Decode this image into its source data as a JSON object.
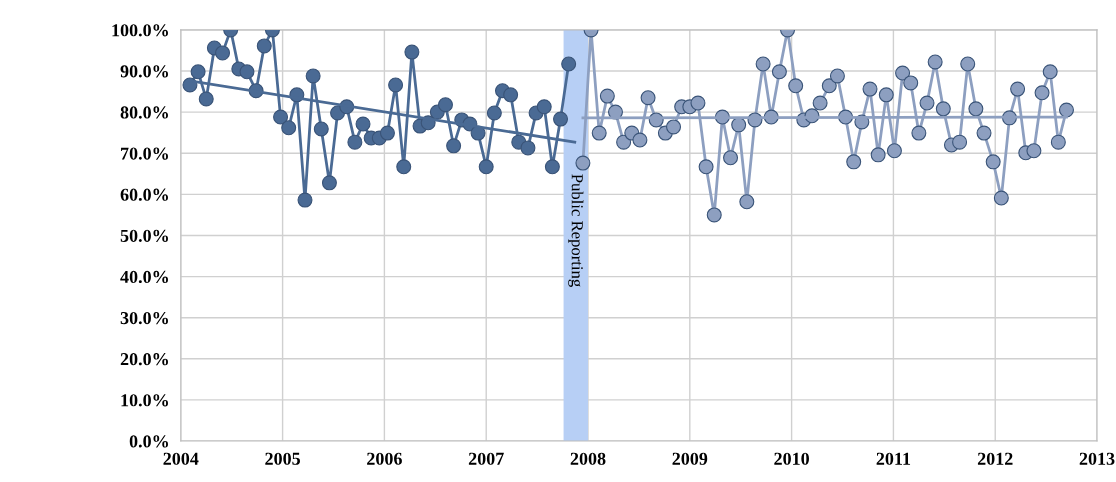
{
  "chart_data": {
    "type": "line",
    "series": [
      {
        "color": "#4a6a94",
        "marker": "circle",
        "x": [
          2004.09,
          2004.17,
          2004.25,
          2004.33,
          2004.41,
          2004.49,
          2004.57,
          2004.65,
          2004.74,
          2004.82,
          2004.9,
          2004.98,
          2005.06,
          2005.14,
          2005.22,
          2005.3,
          2005.38,
          2005.46,
          2005.54,
          2005.63,
          2005.71,
          2005.79,
          2005.87,
          2005.95,
          2006.03,
          2006.11,
          2006.19,
          2006.27,
          2006.35,
          2006.43,
          2006.52,
          2006.6,
          2006.68,
          2006.76,
          2006.84,
          2006.92,
          2007.0,
          2007.08,
          2007.16,
          2007.24,
          2007.32,
          2007.41,
          2007.49,
          2007.57,
          2007.65,
          2007.73,
          2007.81
        ],
        "values": [
          86.6,
          89.8,
          83.2,
          95.6,
          94.4,
          100,
          90.5,
          89.8,
          85.2,
          96.1,
          100,
          78.8,
          76.2,
          84.2,
          58.6,
          88.8,
          75.9,
          62.8,
          79.8,
          81.3,
          72.7,
          77.1,
          73.7,
          73.7,
          74.9,
          86.6,
          66.7,
          94.6,
          76.6,
          77.4,
          80.0,
          81.8,
          71.8,
          78.1,
          77.1,
          74.9,
          66.7,
          79.8,
          85.2,
          84.2,
          72.7,
          71.3,
          79.8,
          81.3,
          66.7,
          78.3,
          91.7
        ]
      },
      {
        "color": "#8d9fc0",
        "marker": "circle",
        "x": [
          2007.95,
          2008.03,
          2008.11,
          2008.19,
          2008.27,
          2008.35,
          2008.43,
          2008.51,
          2008.59,
          2008.67,
          2008.76,
          2008.84,
          2008.92,
          2009.0,
          2009.08,
          2009.16,
          2009.24,
          2009.32,
          2009.4,
          2009.48,
          2009.56,
          2009.64,
          2009.72,
          2009.8,
          2009.88,
          2009.96,
          2010.04,
          2010.12,
          2010.2,
          2010.28,
          2010.37,
          2010.45,
          2010.53,
          2010.61,
          2010.69,
          2010.77,
          2010.85,
          2010.93,
          2011.01,
          2011.09,
          2011.17,
          2011.25,
          2011.33,
          2011.41,
          2011.49,
          2011.57,
          2011.65,
          2011.73,
          2011.81,
          2011.89,
          2011.98,
          2012.06,
          2012.14,
          2012.22,
          2012.3,
          2012.38,
          2012.46,
          2012.54,
          2012.62,
          2012.7
        ],
        "values": [
          67.6,
          100,
          74.9,
          83.9,
          80.0,
          72.7,
          74.9,
          73.2,
          83.5,
          78.1,
          74.9,
          76.4,
          81.3,
          81.3,
          82.2,
          66.7,
          55.0,
          78.8,
          68.9,
          76.9,
          58.2,
          78.1,
          91.7,
          78.8,
          89.8,
          100,
          86.4,
          78.1,
          79.1,
          82.2,
          86.4,
          88.8,
          78.8,
          67.9,
          77.6,
          85.6,
          69.6,
          84.2,
          70.6,
          89.5,
          87.1,
          74.9,
          82.2,
          92.2,
          80.8,
          72.0,
          72.7,
          91.7,
          80.8,
          74.9,
          67.9,
          59.1,
          78.6,
          85.6,
          70.1,
          70.6,
          84.7,
          89.8,
          72.7,
          80.5
        ]
      },
      {
        "color": "#4a6a94",
        "marker": "none",
        "x": [
          2004.09,
          2007.87
        ],
        "values": [
          87.6,
          72.7
        ]
      },
      {
        "color": "#8d9fc0",
        "marker": "none",
        "x": [
          2007.95,
          2012.7
        ],
        "values": [
          78.6,
          78.8
        ]
      }
    ],
    "xlim": [
      2004,
      2013
    ],
    "xticks": [
      2004,
      2005,
      2006,
      2007,
      2008,
      2009,
      2010,
      2011,
      2012,
      2013
    ],
    "ylim": [
      0,
      100
    ],
    "yticks": [
      {
        "value": 0,
        "label": "0.0%"
      },
      {
        "value": 10,
        "label": "10.0%"
      },
      {
        "value": 20,
        "label": "20.0%"
      },
      {
        "value": 30,
        "label": "30.0%"
      },
      {
        "value": 40,
        "label": "40.0%"
      },
      {
        "value": 50,
        "label": "50.0%"
      },
      {
        "value": 60,
        "label": "60.0%"
      },
      {
        "value": 70,
        "label": "70.0%"
      },
      {
        "value": 80,
        "label": "80.0%"
      },
      {
        "value": 90,
        "label": "90.0%"
      },
      {
        "value": 100,
        "label": "100.0%"
      }
    ],
    "bands": [
      {
        "axis": "x",
        "from": 2007.76,
        "to": 2008.0,
        "label": "Public Reporting",
        "color": "#b7cff5"
      }
    ],
    "grid": true,
    "line_style": "solid"
  }
}
